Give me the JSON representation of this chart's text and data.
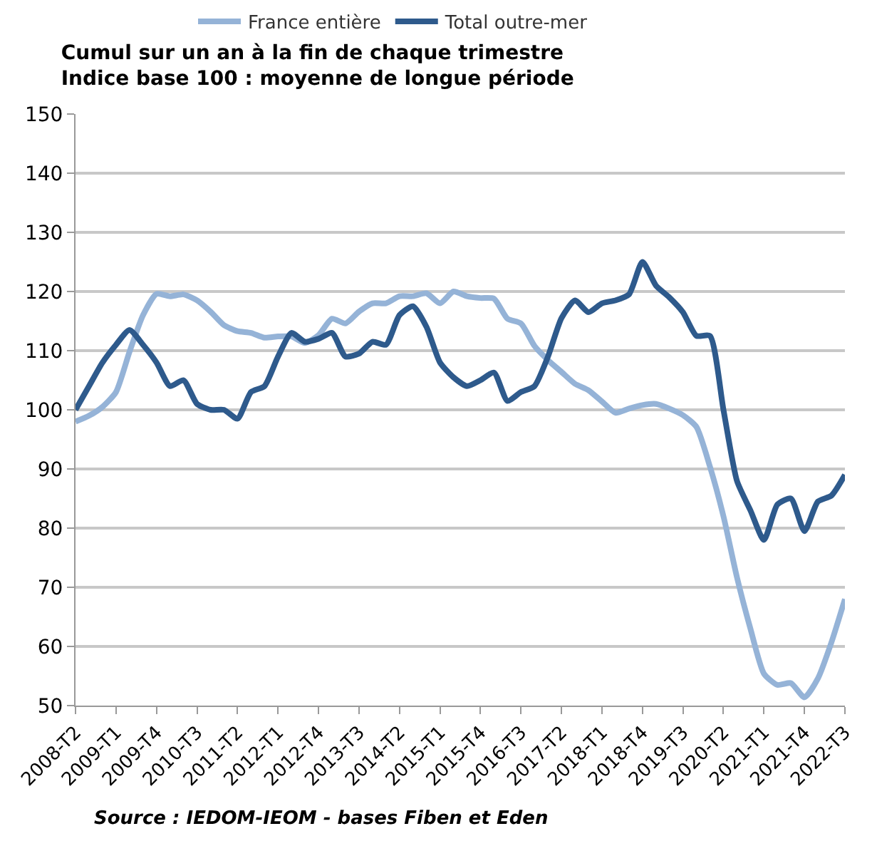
{
  "chart_data": {
    "type": "line",
    "title": "Cumul sur un an à la fin de chaque trimestre",
    "subtitle": "Indice base 100 : moyenne de longue période",
    "categories": [
      "2008-T2",
      null,
      null,
      "2009-T1",
      null,
      null,
      "2009-T4",
      null,
      null,
      "2010-T3",
      null,
      null,
      "2011-T2",
      null,
      null,
      "2012-T1",
      null,
      null,
      "2012-T4",
      null,
      null,
      "2013-T3",
      null,
      null,
      "2014-T2",
      null,
      null,
      "2015-T1",
      null,
      null,
      "2015-T4",
      null,
      null,
      "2016-T3",
      null,
      null,
      "2017-T2",
      null,
      null,
      "2018-T1",
      null,
      null,
      "2018-T4",
      null,
      null,
      "2019-T3",
      null,
      null,
      "2020-T2",
      null,
      null,
      "2021-T1",
      null,
      null,
      "2021-T4",
      null,
      null,
      "2022-T3"
    ],
    "series": [
      {
        "name": "France entière",
        "color": "#95b3d7",
        "values": [
          98,
          99,
          100.5,
          103,
          109.8,
          116,
          119.6,
          119.2,
          119.5,
          118.5,
          116.6,
          114.3,
          113.3,
          113,
          112.2,
          112.4,
          112.4,
          111.3,
          112.6,
          115.4,
          114.6,
          116.6,
          118,
          118,
          119.2,
          119.2,
          119.7,
          118,
          120,
          119.2,
          118.9,
          118.8,
          115.4,
          114.6,
          110.8,
          108.4,
          106.4,
          104.4,
          103.3,
          101.4,
          99.5,
          100.2,
          100.8,
          101,
          100.2,
          99.1,
          97.1,
          90.4,
          82,
          71.7,
          63,
          55.4,
          53.5,
          53.8,
          51.4,
          54.6,
          60.7,
          68
        ]
      },
      {
        "name": "Total outre-mer",
        "color": "#2e5a8c",
        "values": [
          100,
          104,
          108,
          111,
          113.5,
          111,
          108,
          104,
          105,
          101,
          100,
          100,
          98.5,
          103,
          104,
          109,
          113,
          111.5,
          112,
          113,
          109,
          109.5,
          111.5,
          111,
          116,
          117.5,
          114,
          108,
          105.5,
          104,
          105,
          106.3,
          101.5,
          103,
          104,
          109,
          115.5,
          118.5,
          116.5,
          118,
          118.5,
          119.5,
          125,
          121,
          119,
          116.5,
          112.5,
          112.5,
          100,
          88,
          83,
          78,
          84,
          85,
          79.5,
          84.5,
          85.5,
          89
        ]
      }
    ],
    "ylim": [
      50,
      150
    ],
    "yticks": [
      50,
      60,
      70,
      80,
      90,
      100,
      110,
      120,
      130,
      140,
      150
    ],
    "grid": "y",
    "legend": "top",
    "marker": "none",
    "line_style": "solid",
    "annotations": [
      "Source : IEDOM-IEOM - bases Fiben et Eden"
    ]
  }
}
